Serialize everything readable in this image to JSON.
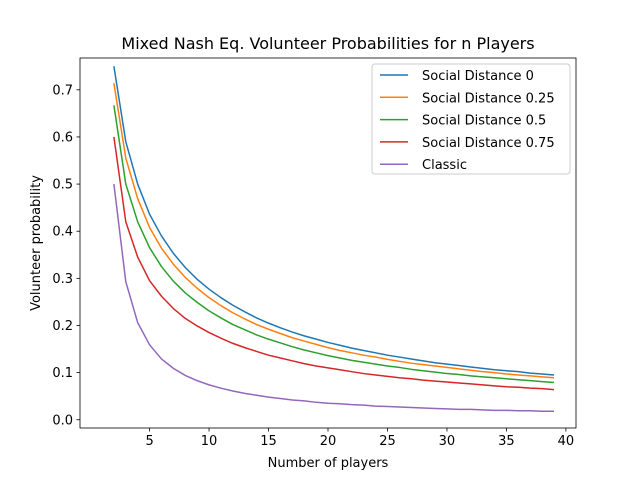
{
  "chart_data": {
    "type": "line",
    "title": "Mixed Nash Eq. Volunteer Probabilities for n Players",
    "xlabel": "Number of players",
    "ylabel": "Volunteer probability",
    "xlim": [
      -0.85,
      40.85
    ],
    "ylim": [
      -0.0175,
      0.7675
    ],
    "xticks": [
      5,
      10,
      15,
      20,
      25,
      30,
      35,
      40
    ],
    "yticks": [
      0.0,
      0.1,
      0.2,
      0.3,
      0.4,
      0.5,
      0.6,
      0.7
    ],
    "ytick_labels": [
      "0.0",
      "0.1",
      "0.2",
      "0.3",
      "0.4",
      "0.5",
      "0.6",
      "0.7"
    ],
    "grid": false,
    "legend_position": "top-right",
    "x": [
      2,
      3,
      4,
      5,
      6,
      7,
      8,
      9,
      10,
      11,
      12,
      13,
      14,
      15,
      16,
      17,
      18,
      19,
      20,
      21,
      22,
      23,
      24,
      25,
      26,
      27,
      28,
      29,
      30,
      31,
      32,
      33,
      34,
      35,
      36,
      37,
      38,
      39
    ],
    "series": [
      {
        "name": "Social Distance 0",
        "color": "#1f77b4",
        "values": [
          0.75,
          0.59,
          0.5,
          0.436,
          0.39,
          0.353,
          0.323,
          0.298,
          0.277,
          0.259,
          0.243,
          0.229,
          0.216,
          0.205,
          0.195,
          0.186,
          0.178,
          0.171,
          0.164,
          0.158,
          0.152,
          0.147,
          0.142,
          0.137,
          0.133,
          0.129,
          0.125,
          0.121,
          0.118,
          0.115,
          0.112,
          0.109,
          0.106,
          0.104,
          0.102,
          0.099,
          0.097,
          0.095
        ]
      },
      {
        "name": "Social Distance 0.25",
        "color": "#ff7f0e",
        "values": [
          0.714,
          0.555,
          0.469,
          0.408,
          0.364,
          0.33,
          0.302,
          0.279,
          0.259,
          0.242,
          0.227,
          0.214,
          0.202,
          0.192,
          0.183,
          0.174,
          0.167,
          0.16,
          0.153,
          0.147,
          0.142,
          0.137,
          0.133,
          0.128,
          0.124,
          0.12,
          0.117,
          0.114,
          0.111,
          0.108,
          0.105,
          0.102,
          0.1,
          0.097,
          0.095,
          0.093,
          0.091,
          0.089
        ]
      },
      {
        "name": "Social Distance 0.5",
        "color": "#2ca02c",
        "values": [
          0.667,
          0.5,
          0.42,
          0.365,
          0.325,
          0.294,
          0.269,
          0.249,
          0.231,
          0.216,
          0.202,
          0.191,
          0.18,
          0.171,
          0.163,
          0.155,
          0.148,
          0.142,
          0.136,
          0.131,
          0.126,
          0.122,
          0.118,
          0.114,
          0.111,
          0.107,
          0.104,
          0.101,
          0.098,
          0.096,
          0.093,
          0.091,
          0.089,
          0.087,
          0.085,
          0.083,
          0.081,
          0.079
        ]
      },
      {
        "name": "Social Distance 0.75",
        "color": "#d62728",
        "values": [
          0.6,
          0.42,
          0.345,
          0.295,
          0.262,
          0.236,
          0.215,
          0.199,
          0.185,
          0.173,
          0.162,
          0.153,
          0.145,
          0.137,
          0.131,
          0.125,
          0.119,
          0.114,
          0.11,
          0.106,
          0.102,
          0.098,
          0.095,
          0.092,
          0.089,
          0.087,
          0.084,
          0.082,
          0.08,
          0.078,
          0.076,
          0.074,
          0.072,
          0.07,
          0.069,
          0.067,
          0.066,
          0.064
        ]
      },
      {
        "name": "Classic",
        "color": "#9467bd",
        "values": [
          0.5,
          0.293,
          0.206,
          0.159,
          0.129,
          0.109,
          0.094,
          0.083,
          0.074,
          0.067,
          0.061,
          0.056,
          0.052,
          0.048,
          0.045,
          0.042,
          0.04,
          0.037,
          0.035,
          0.034,
          0.032,
          0.031,
          0.029,
          0.028,
          0.027,
          0.026,
          0.025,
          0.024,
          0.023,
          0.022,
          0.022,
          0.021,
          0.02,
          0.02,
          0.019,
          0.019,
          0.018,
          0.018
        ]
      }
    ]
  }
}
